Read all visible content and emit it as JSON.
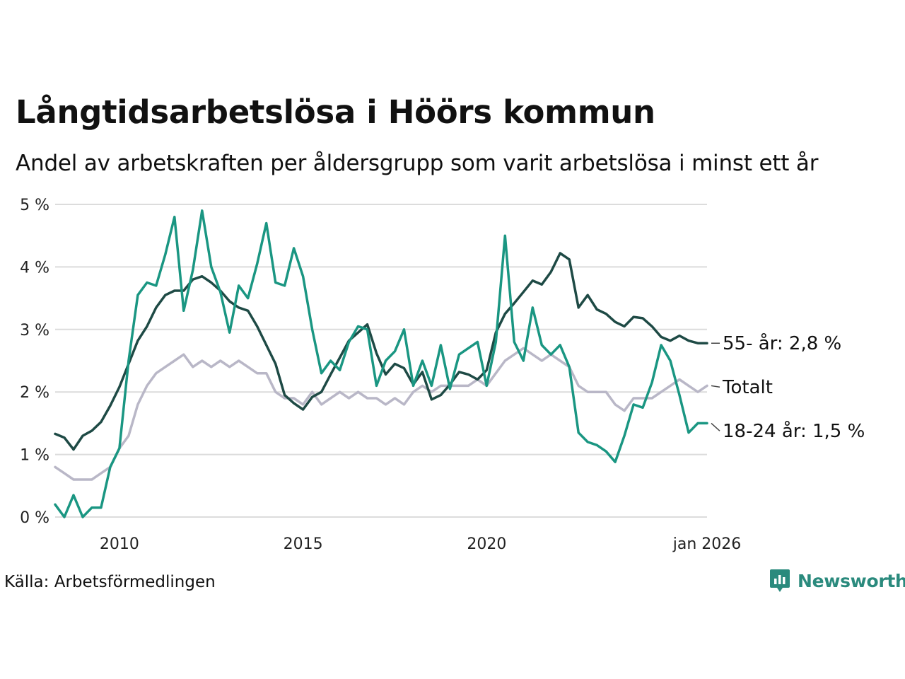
{
  "title": "Långtidsarbetslösa i Höörs kommun",
  "subtitle": "Andel av arbetskraften per åldersgrupp som varit arbetslösa i minst ett år",
  "source": "Källa: Arbetsförmedlingen",
  "brand": {
    "name": "Newsworthy",
    "logo_icon": "newsworthy-logo-icon",
    "color": "#2a8a7d"
  },
  "chart_data": {
    "type": "line",
    "x_range": [
      2008.25,
      2026.0
    ],
    "ylim": [
      0,
      5
    ],
    "y_ticks": [
      {
        "value": 0,
        "label": "0 %"
      },
      {
        "value": 1,
        "label": "1 %"
      },
      {
        "value": 2,
        "label": "2 %"
      },
      {
        "value": 3,
        "label": "3 %"
      },
      {
        "value": 4,
        "label": "4 %"
      },
      {
        "value": 5,
        "label": "5 %"
      }
    ],
    "x_ticks": [
      {
        "value": 2010,
        "label": "2010"
      },
      {
        "value": 2015,
        "label": "2015"
      },
      {
        "value": 2020,
        "label": "2020"
      },
      {
        "value": 2026,
        "label": "jan 2026"
      }
    ],
    "grid": true,
    "series": [
      {
        "name": "Totalt",
        "label": "Totalt",
        "color": "#b9b7c7",
        "points": [
          [
            2008.25,
            0.8
          ],
          [
            2008.5,
            0.7
          ],
          [
            2008.75,
            0.6
          ],
          [
            2009.0,
            0.6
          ],
          [
            2009.25,
            0.6
          ],
          [
            2009.5,
            0.7
          ],
          [
            2009.75,
            0.8
          ],
          [
            2010.0,
            1.1
          ],
          [
            2010.25,
            1.3
          ],
          [
            2010.5,
            1.8
          ],
          [
            2010.75,
            2.1
          ],
          [
            2011.0,
            2.3
          ],
          [
            2011.25,
            2.4
          ],
          [
            2011.5,
            2.5
          ],
          [
            2011.75,
            2.6
          ],
          [
            2012.0,
            2.4
          ],
          [
            2012.25,
            2.5
          ],
          [
            2012.5,
            2.4
          ],
          [
            2012.75,
            2.5
          ],
          [
            2013.0,
            2.4
          ],
          [
            2013.25,
            2.5
          ],
          [
            2013.5,
            2.4
          ],
          [
            2013.75,
            2.3
          ],
          [
            2014.0,
            2.3
          ],
          [
            2014.25,
            2.0
          ],
          [
            2014.5,
            1.9
          ],
          [
            2014.75,
            1.9
          ],
          [
            2015.0,
            1.8
          ],
          [
            2015.25,
            2.0
          ],
          [
            2015.5,
            1.8
          ],
          [
            2015.75,
            1.9
          ],
          [
            2016.0,
            2.0
          ],
          [
            2016.25,
            1.9
          ],
          [
            2016.5,
            2.0
          ],
          [
            2016.75,
            1.9
          ],
          [
            2017.0,
            1.9
          ],
          [
            2017.25,
            1.8
          ],
          [
            2017.5,
            1.9
          ],
          [
            2017.75,
            1.8
          ],
          [
            2018.0,
            2.0
          ],
          [
            2018.25,
            2.1
          ],
          [
            2018.5,
            2.0
          ],
          [
            2018.75,
            2.1
          ],
          [
            2019.0,
            2.1
          ],
          [
            2019.25,
            2.1
          ],
          [
            2019.5,
            2.1
          ],
          [
            2019.75,
            2.2
          ],
          [
            2020.0,
            2.1
          ],
          [
            2020.25,
            2.3
          ],
          [
            2020.5,
            2.5
          ],
          [
            2020.75,
            2.6
          ],
          [
            2021.0,
            2.7
          ],
          [
            2021.25,
            2.6
          ],
          [
            2021.5,
            2.5
          ],
          [
            2021.75,
            2.6
          ],
          [
            2022.0,
            2.5
          ],
          [
            2022.25,
            2.4
          ],
          [
            2022.5,
            2.1
          ],
          [
            2022.75,
            2.0
          ],
          [
            2023.0,
            2.0
          ],
          [
            2023.25,
            2.0
          ],
          [
            2023.5,
            1.8
          ],
          [
            2023.75,
            1.7
          ],
          [
            2024.0,
            1.9
          ],
          [
            2024.25,
            1.9
          ],
          [
            2024.5,
            1.9
          ],
          [
            2024.75,
            2.0
          ],
          [
            2025.0,
            2.1
          ],
          [
            2025.25,
            2.2
          ],
          [
            2025.5,
            2.1
          ],
          [
            2025.75,
            2.0
          ],
          [
            2026.0,
            2.1
          ]
        ]
      },
      {
        "name": "55- år",
        "label": "55- år: 2,8 %",
        "color": "#1e4a45",
        "points": [
          [
            2008.25,
            1.33
          ],
          [
            2008.5,
            1.27
          ],
          [
            2008.75,
            1.08
          ],
          [
            2009.0,
            1.3
          ],
          [
            2009.25,
            1.38
          ],
          [
            2009.5,
            1.52
          ],
          [
            2009.75,
            1.78
          ],
          [
            2010.0,
            2.08
          ],
          [
            2010.25,
            2.45
          ],
          [
            2010.5,
            2.82
          ],
          [
            2010.75,
            3.05
          ],
          [
            2011.0,
            3.35
          ],
          [
            2011.25,
            3.55
          ],
          [
            2011.5,
            3.62
          ],
          [
            2011.75,
            3.62
          ],
          [
            2012.0,
            3.8
          ],
          [
            2012.25,
            3.85
          ],
          [
            2012.5,
            3.75
          ],
          [
            2012.75,
            3.62
          ],
          [
            2013.0,
            3.45
          ],
          [
            2013.25,
            3.35
          ],
          [
            2013.5,
            3.3
          ],
          [
            2013.75,
            3.05
          ],
          [
            2014.0,
            2.75
          ],
          [
            2014.25,
            2.45
          ],
          [
            2014.5,
            1.95
          ],
          [
            2014.75,
            1.82
          ],
          [
            2015.0,
            1.72
          ],
          [
            2015.25,
            1.92
          ],
          [
            2015.5,
            2.0
          ],
          [
            2015.75,
            2.28
          ],
          [
            2016.0,
            2.55
          ],
          [
            2016.25,
            2.82
          ],
          [
            2016.5,
            2.95
          ],
          [
            2016.75,
            3.08
          ],
          [
            2017.0,
            2.62
          ],
          [
            2017.25,
            2.28
          ],
          [
            2017.5,
            2.45
          ],
          [
            2017.75,
            2.38
          ],
          [
            2018.0,
            2.12
          ],
          [
            2018.25,
            2.32
          ],
          [
            2018.5,
            1.88
          ],
          [
            2018.75,
            1.95
          ],
          [
            2019.0,
            2.12
          ],
          [
            2019.25,
            2.32
          ],
          [
            2019.5,
            2.28
          ],
          [
            2019.75,
            2.2
          ],
          [
            2020.0,
            2.35
          ],
          [
            2020.25,
            2.95
          ],
          [
            2020.5,
            3.25
          ],
          [
            2020.75,
            3.42
          ],
          [
            2021.0,
            3.6
          ],
          [
            2021.25,
            3.78
          ],
          [
            2021.5,
            3.72
          ],
          [
            2021.75,
            3.92
          ],
          [
            2022.0,
            4.22
          ],
          [
            2022.25,
            4.12
          ],
          [
            2022.5,
            3.35
          ],
          [
            2022.75,
            3.55
          ],
          [
            2023.0,
            3.32
          ],
          [
            2023.25,
            3.25
          ],
          [
            2023.5,
            3.12
          ],
          [
            2023.75,
            3.05
          ],
          [
            2024.0,
            3.2
          ],
          [
            2024.25,
            3.18
          ],
          [
            2024.5,
            3.05
          ],
          [
            2024.75,
            2.88
          ],
          [
            2025.0,
            2.82
          ],
          [
            2025.25,
            2.9
          ],
          [
            2025.5,
            2.82
          ],
          [
            2025.75,
            2.78
          ],
          [
            2026.0,
            2.78
          ]
        ]
      },
      {
        "name": "18-24 år",
        "label": "18-24 år: 1,5 %",
        "color": "#1a9682",
        "points": [
          [
            2008.25,
            0.2
          ],
          [
            2008.5,
            0.0
          ],
          [
            2008.75,
            0.35
          ],
          [
            2009.0,
            0.0
          ],
          [
            2009.25,
            0.15
          ],
          [
            2009.5,
            0.15
          ],
          [
            2009.75,
            0.8
          ],
          [
            2010.0,
            1.1
          ],
          [
            2010.25,
            2.5
          ],
          [
            2010.5,
            3.55
          ],
          [
            2010.75,
            3.75
          ],
          [
            2011.0,
            3.7
          ],
          [
            2011.25,
            4.2
          ],
          [
            2011.5,
            4.8
          ],
          [
            2011.75,
            3.3
          ],
          [
            2012.0,
            3.95
          ],
          [
            2012.25,
            4.9
          ],
          [
            2012.5,
            4.0
          ],
          [
            2012.75,
            3.6
          ],
          [
            2013.0,
            2.95
          ],
          [
            2013.25,
            3.7
          ],
          [
            2013.5,
            3.5
          ],
          [
            2013.75,
            4.05
          ],
          [
            2014.0,
            4.7
          ],
          [
            2014.25,
            3.75
          ],
          [
            2014.5,
            3.7
          ],
          [
            2014.75,
            4.3
          ],
          [
            2015.0,
            3.85
          ],
          [
            2015.25,
            3.0
          ],
          [
            2015.5,
            2.3
          ],
          [
            2015.75,
            2.5
          ],
          [
            2016.0,
            2.35
          ],
          [
            2016.25,
            2.8
          ],
          [
            2016.5,
            3.05
          ],
          [
            2016.75,
            3.0
          ],
          [
            2017.0,
            2.1
          ],
          [
            2017.25,
            2.5
          ],
          [
            2017.5,
            2.65
          ],
          [
            2017.75,
            3.0
          ],
          [
            2018.0,
            2.1
          ],
          [
            2018.25,
            2.5
          ],
          [
            2018.5,
            2.1
          ],
          [
            2018.75,
            2.75
          ],
          [
            2019.0,
            2.05
          ],
          [
            2019.25,
            2.6
          ],
          [
            2019.5,
            2.7
          ],
          [
            2019.75,
            2.8
          ],
          [
            2020.0,
            2.1
          ],
          [
            2020.25,
            2.8
          ],
          [
            2020.5,
            4.5
          ],
          [
            2020.75,
            2.8
          ],
          [
            2021.0,
            2.5
          ],
          [
            2021.25,
            3.35
          ],
          [
            2021.5,
            2.75
          ],
          [
            2021.75,
            2.6
          ],
          [
            2022.0,
            2.75
          ],
          [
            2022.25,
            2.4
          ],
          [
            2022.5,
            1.35
          ],
          [
            2022.75,
            1.2
          ],
          [
            2023.0,
            1.15
          ],
          [
            2023.25,
            1.05
          ],
          [
            2023.5,
            0.88
          ],
          [
            2023.75,
            1.3
          ],
          [
            2024.0,
            1.8
          ],
          [
            2024.25,
            1.75
          ],
          [
            2024.5,
            2.15
          ],
          [
            2024.75,
            2.75
          ],
          [
            2025.0,
            2.5
          ],
          [
            2025.25,
            1.95
          ],
          [
            2025.5,
            1.35
          ],
          [
            2025.75,
            1.5
          ],
          [
            2026.0,
            1.5
          ]
        ]
      }
    ]
  }
}
